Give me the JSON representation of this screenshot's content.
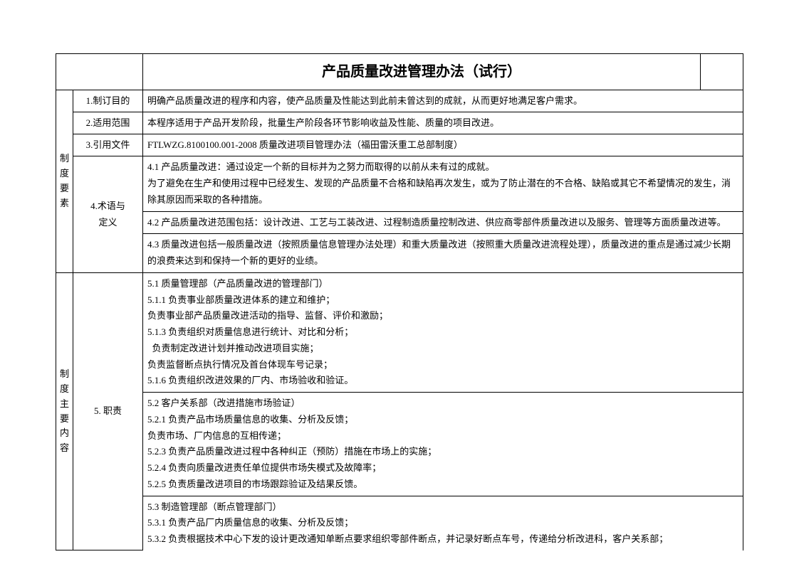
{
  "title": "产品质量改进管理办法（试行）",
  "section1": {
    "vertical_label": "制度要素",
    "rows": [
      {
        "h": "1.制订目的",
        "c": "明确产品质量改进的程序和内容，使产品质量及性能达到此前未曾达到的成就，从而更好地满足客户需求。"
      },
      {
        "h": "2.适用范围",
        "c": "本程序适用于产品开发阶段，批量生产阶段各环节影响收益及性能、质量的项目改进。"
      },
      {
        "h": "3.引用文件",
        "c": "FTLWZG.8100100.001-2008   质量改进项目管理办法（福田雷沃重工总部制度）"
      }
    ],
    "terms_header": "4.术语与定义",
    "terms": [
      "4.1 产品质量改进：通过设定一个新的目标并为之努力而取得的以前从未有过的成就。\n为了避免在生产和使用过程中已经发生、发现的产品质量不合格和缺陷再次发生，或为了防止潜在的不合格、缺陷或其它不希望情况的发生，消除其原因而采取的各种措施。",
      "4.2 产品质量改进范围包括：设计改进、工艺与工装改进、过程制造质量控制改进、供应商零部件质量改进以及服务、管理等方面质量改进等。",
      "4.3 质量改进包括一般质量改进（按照质量信息管理办法处理）和重大质量改进（按照重大质量改进流程处理），质量改进的重点是通过减少长期的浪费来达到和保持一个新的更好的业绩。"
    ]
  },
  "section2": {
    "vertical_label": "制度主要内容",
    "duty_header": "5. 职责",
    "duties": [
      "5.1 质量管理部（产品质量改进的管理部门）\n5.1.1 负责事业部质量改进体系的建立和维护；\n负责事业部产品质量改进活动的指导、监督、评价和激励；\n5.1.3 负责组织对质量信息进行统计、对比和分析；\n  负责制定改进计划并推动改进项目实施；\n负责监督断点执行情况及首台体现车号记录；\n5.1.6 负责组织改进效果的厂内、市场验收和验证。",
      "5.2 客户关系部（改进措施市场验证）\n5.2.1 负责产品市场质量信息的收集、分析及反馈；\n负责市场、厂内信息的互相传递；\n5.2.3  负责产品质量改进过程中各种纠正（预防）措施在市场上的实施；\n5.2.4 负责向质量改进责任单位提供市场失模式及故障率；\n5.2.5 负责质量改进项目的市场跟踪验证及结果反馈。",
      "5.3 制造管理部（断点管理部门）\n5.3.1 负责产品厂内质量信息的收集、分析及反馈；\n5.3.2 负责根据技术中心下发的设计更改通知单断点要求组织零部件断点，并记录好断点车号，传递给分析改进科，客户关系部；"
    ]
  },
  "style": {
    "font_family": "SimSun",
    "title_fontsize": 20,
    "body_fontsize": 13,
    "border_color": "#000000",
    "background_color": "#ffffff",
    "col_widths": {
      "left_vertical": 24,
      "row_header": 98,
      "title_left_blank": 122,
      "title_right_blank": 60
    }
  }
}
